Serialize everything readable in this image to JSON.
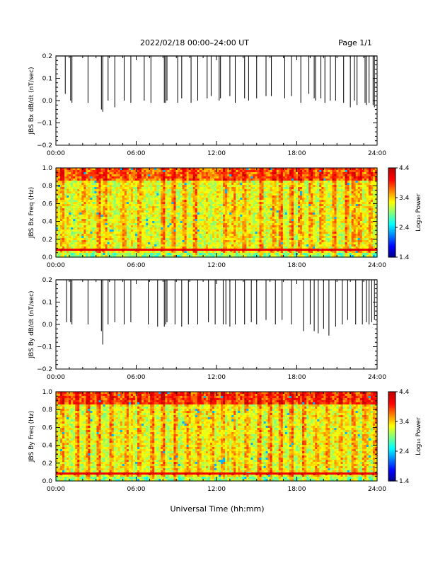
{
  "header": {
    "title": "2022/02/18  00:00–24:00 UT",
    "page": "Page 1/1"
  },
  "xlabel": "Universal Time (hh:mm)",
  "colorbar": {
    "label": "Log₁₀ Power",
    "ticks": [
      "4.4",
      "3.4",
      "2.4",
      "1.4"
    ],
    "range": [
      1.4,
      4.4
    ]
  },
  "chart_data": [
    {
      "type": "line",
      "ylabel": "JBS Bx dB/dt (nT/sec)",
      "ylim": [
        -0.2,
        0.2
      ],
      "y_ticks": [
        "0.2",
        "0.1",
        "0.0",
        "−0.1",
        "−0.2"
      ],
      "x_ticks": [
        "00:00",
        "06:00",
        "12:00",
        "18:00",
        "24:00"
      ],
      "xlim_hours": [
        0,
        24
      ],
      "spikes": {
        "hours": [
          0.7,
          1.1,
          1.2,
          2.4,
          3.4,
          3.5,
          3.9,
          4.4,
          5.1,
          5.6,
          6.6,
          7.1,
          8.1,
          8.2,
          8.3,
          9.1,
          9.4,
          10.1,
          10.6,
          11.3,
          11.6,
          12.2,
          12.3,
          13.0,
          13.4,
          14.1,
          14.4,
          15.0,
          15.7,
          16.1,
          17.1,
          17.6,
          18.3,
          18.9,
          19.3,
          19.4,
          19.8,
          20.1,
          20.5,
          20.9,
          21.5,
          22.0,
          22.3,
          22.5,
          23.1,
          23.2,
          23.4,
          23.7,
          23.8
        ],
        "min_values": [
          0.03,
          0.0,
          -0.01,
          -0.01,
          -0.04,
          -0.05,
          0.0,
          -0.03,
          0.0,
          -0.01,
          0.0,
          -0.01,
          -0.01,
          -0.01,
          0.0,
          -0.01,
          0.01,
          -0.01,
          0.0,
          0.01,
          0.02,
          0.0,
          0.01,
          0.02,
          -0.01,
          0.01,
          0.0,
          0.01,
          0.02,
          0.02,
          0.01,
          0.02,
          -0.01,
          0.03,
          0.01,
          0.0,
          0.01,
          -0.01,
          0.0,
          0.0,
          -0.01,
          -0.03,
          0.0,
          -0.02,
          -0.01,
          -0.02,
          -0.01,
          -0.02,
          -0.03
        ]
      }
    },
    {
      "type": "heatmap",
      "ylabel": "JBS Bx Freq (Hz)",
      "ylim": [
        0.0,
        1.0
      ],
      "y_ticks": [
        "1.0",
        "0.8",
        "0.6",
        "0.4",
        "0.2",
        "0.0"
      ],
      "x_ticks": [
        "00:00",
        "06:00",
        "12:00",
        "18:00",
        "24:00"
      ],
      "xlim_hours": [
        0,
        24
      ],
      "baseline_log_power": 3.2,
      "high_freq_band_log_power": 3.7,
      "low_freq_line": {
        "freq_hz": 0.08,
        "log_power": 4.1
      },
      "pulse_hours": [
        0.4,
        1.9,
        3.0,
        3.5,
        5.0,
        6.0,
        7.9,
        8.7,
        9.5,
        10.3,
        12.4,
        13.1,
        14.0,
        15.2,
        16.1,
        16.6,
        17.4,
        18.0,
        18.9,
        19.6,
        20.6,
        21.6,
        22.0,
        22.6,
        23.4
      ]
    },
    {
      "type": "line",
      "ylabel": "JBS By dB/dt (nT/sec)",
      "ylim": [
        -0.2,
        0.2
      ],
      "y_ticks": [
        "0.2",
        "0.1",
        "0.0",
        "−0.1",
        "−0.2"
      ],
      "x_ticks": [
        "00:00",
        "06:00",
        "12:00",
        "18:00",
        "24:00"
      ],
      "xlim_hours": [
        0,
        24
      ],
      "spikes": {
        "hours": [
          0.8,
          1.1,
          1.2,
          2.4,
          3.4,
          3.5,
          3.9,
          4.4,
          5.1,
          5.6,
          6.9,
          7.6,
          8.1,
          8.2,
          8.3,
          8.9,
          9.4,
          9.9,
          10.6,
          11.4,
          11.9,
          12.5,
          12.7,
          13.0,
          13.4,
          14.1,
          14.6,
          15.0,
          15.7,
          16.4,
          16.9,
          17.6,
          18.5,
          19.0,
          19.3,
          19.6,
          20.0,
          20.4,
          20.9,
          21.4,
          21.8,
          22.4,
          22.9,
          23.2,
          23.4,
          23.6,
          23.8
        ],
        "min_values": [
          0.01,
          0.01,
          0.0,
          0.0,
          -0.03,
          -0.09,
          0.0,
          0.01,
          0.0,
          0.01,
          0.0,
          -0.01,
          -0.01,
          0.0,
          0.01,
          0.0,
          -0.01,
          0.0,
          0.0,
          0.01,
          0.0,
          0.0,
          0.0,
          -0.01,
          0.0,
          0.0,
          0.01,
          0.0,
          0.02,
          0.0,
          0.02,
          0.0,
          -0.03,
          0.0,
          -0.03,
          -0.04,
          -0.02,
          -0.05,
          -0.01,
          0.0,
          0.02,
          0.0,
          0.0,
          0.01,
          0.0,
          0.01,
          0.02
        ]
      }
    },
    {
      "type": "heatmap",
      "ylabel": "JBS By Freq (Hz)",
      "ylim": [
        0.0,
        1.0
      ],
      "y_ticks": [
        "1.0",
        "0.8",
        "0.6",
        "0.4",
        "0.2",
        "0.0"
      ],
      "x_ticks": [
        "00:00",
        "06:00",
        "12:00",
        "18:00",
        "24:00"
      ],
      "xlim_hours": [
        0,
        24
      ],
      "baseline_log_power": 3.2,
      "high_freq_band_log_power": 3.8,
      "low_freq_line": {
        "freq_hz": 0.08,
        "log_power": 4.1
      },
      "pulse_hours": [
        0.4,
        1.4,
        2.3,
        3.1,
        4.0,
        5.1,
        6.1,
        7.0,
        7.9,
        8.8,
        9.7,
        10.6,
        11.5,
        12.3,
        13.2,
        14.1,
        15.0,
        15.8,
        16.7,
        17.5,
        18.4,
        19.3,
        20.2,
        21.1,
        22.0,
        22.9,
        23.7
      ]
    }
  ]
}
